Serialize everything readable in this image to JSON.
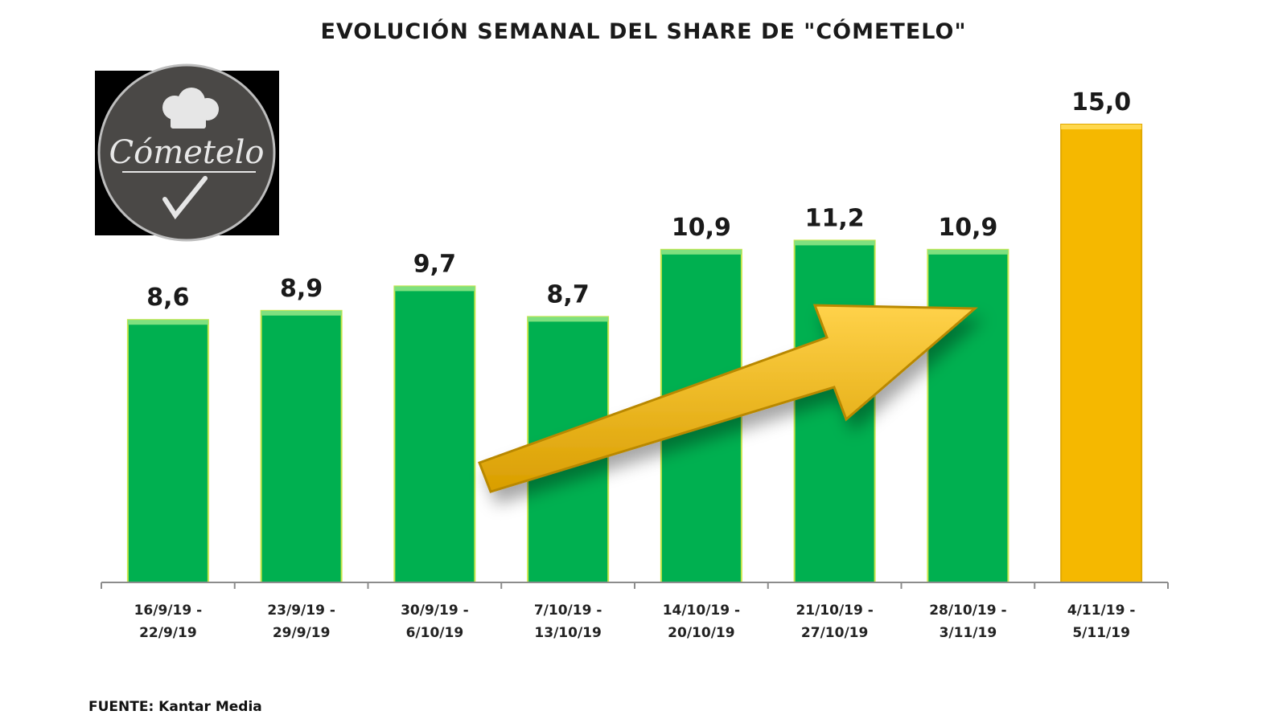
{
  "chart_data": {
    "type": "bar",
    "title": "EVOLUCIÓN SEMANAL DEL SHARE DE \"CÓMETELO\"",
    "categories": [
      [
        "16/9/19 -",
        "22/9/19"
      ],
      [
        "23/9/19 -",
        "29/9/19"
      ],
      [
        "30/9/19 -",
        "6/10/19"
      ],
      [
        "7/10/19 -",
        "13/10/19"
      ],
      [
        "14/10/19 -",
        "20/10/19"
      ],
      [
        "21/10/19 -",
        "27/10/19"
      ],
      [
        "28/10/19 -",
        "3/11/19"
      ],
      [
        "4/11/19 -",
        "5/11/19"
      ]
    ],
    "values": [
      8.6,
      8.9,
      9.7,
      8.7,
      10.9,
      11.2,
      10.9,
      15.0
    ],
    "value_labels": [
      "8,6",
      "8,9",
      "9,7",
      "8,7",
      "10,9",
      "11,2",
      "10,9",
      "15,0"
    ],
    "bar_colors": [
      "#00b050",
      "#00b050",
      "#00b050",
      "#00b050",
      "#00b050",
      "#00b050",
      "#00b050",
      "#f5b800"
    ],
    "ylim": [
      0,
      16.5
    ],
    "xlabel": "",
    "ylabel": "",
    "grid": false,
    "trend_arrow_color": "#f2b705"
  },
  "logo": {
    "text": "Cómetelo",
    "background": "#000000",
    "circle_color": "#4a4846"
  },
  "source": "FUENTE: Kantar Media"
}
